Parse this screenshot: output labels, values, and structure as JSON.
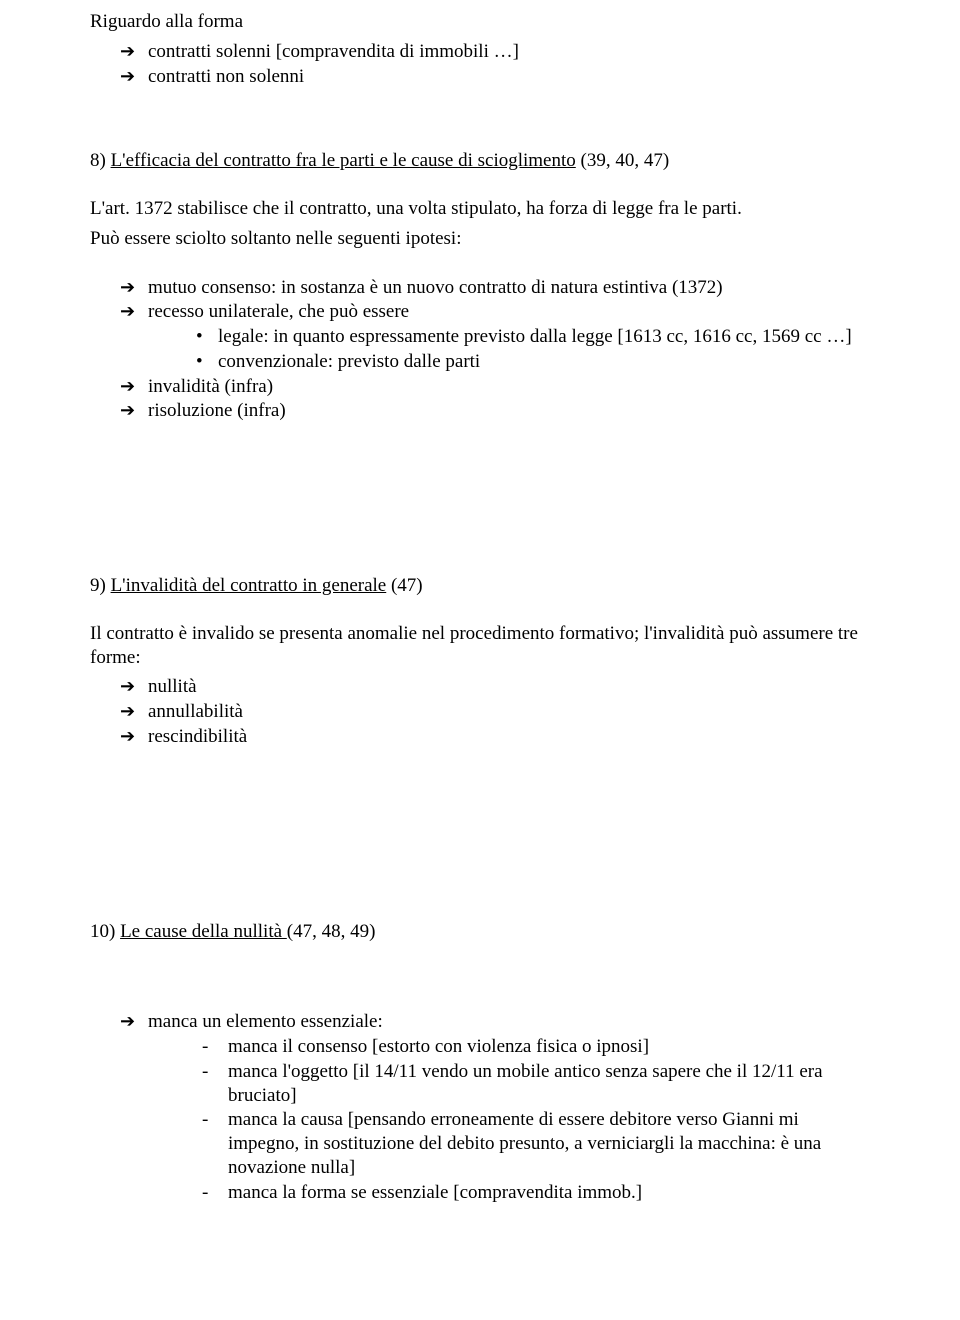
{
  "s1": {
    "title": "Riguardo alla forma",
    "items": [
      "contratti solenni [compravendita di immobili …]",
      "contratti non solenni"
    ]
  },
  "s2": {
    "heading_prefix": "8) ",
    "heading_u": "L'efficacia del contratto fra le parti e le cause di scioglimento",
    "heading_suffix": " (39, 40, 47)",
    "p1": "L'art. 1372 stabilisce che il contratto, una volta stipulato, ha forza di legge fra le parti.",
    "p2": "Può essere sciolto soltanto nelle seguenti ipotesi:",
    "arrow1": "mutuo consenso: in sostanza è un  nuovo contratto di natura estintiva (1372)",
    "arrow2": "recesso unilaterale, che può essere",
    "bul1": "legale: in quanto espressamente previsto dalla legge [1613 cc, 1616 cc, 1569 cc …]",
    "bul2": "convenzionale: previsto dalle parti",
    "arrow3": "invalidità (infra)",
    "arrow4": "risoluzione (infra)"
  },
  "s3": {
    "heading_prefix": "9) ",
    "heading_u": "L'invalidità del contratto in generale",
    "heading_suffix": " (47)",
    "p1": "Il contratto è invalido se presenta anomalie nel procedimento formativo; l'invalidità può assumere tre forme:",
    "items": [
      "nullità",
      "annullabilità",
      "rescindibilità"
    ]
  },
  "s4": {
    "heading_prefix": "10) ",
    "heading_u": "Le cause della  nullità ",
    "heading_suffix": "(47, 48, 49)",
    "arrow1": "manca un elemento essenziale:",
    "d1": "manca il consenso [estorto con violenza fisica o ipnosi]",
    "d2": "manca l'oggetto [il 14/11 vendo un mobile antico senza sapere che il 12/11 era bruciato]",
    "d3": "manca la causa [pensando erroneamente di essere debitore verso Gianni mi impegno, in sostituzione del debito presunto, a verniciargli la macchina: è una novazione nulla]",
    "d4": "manca la forma se essenziale [compravendita immob.]"
  }
}
